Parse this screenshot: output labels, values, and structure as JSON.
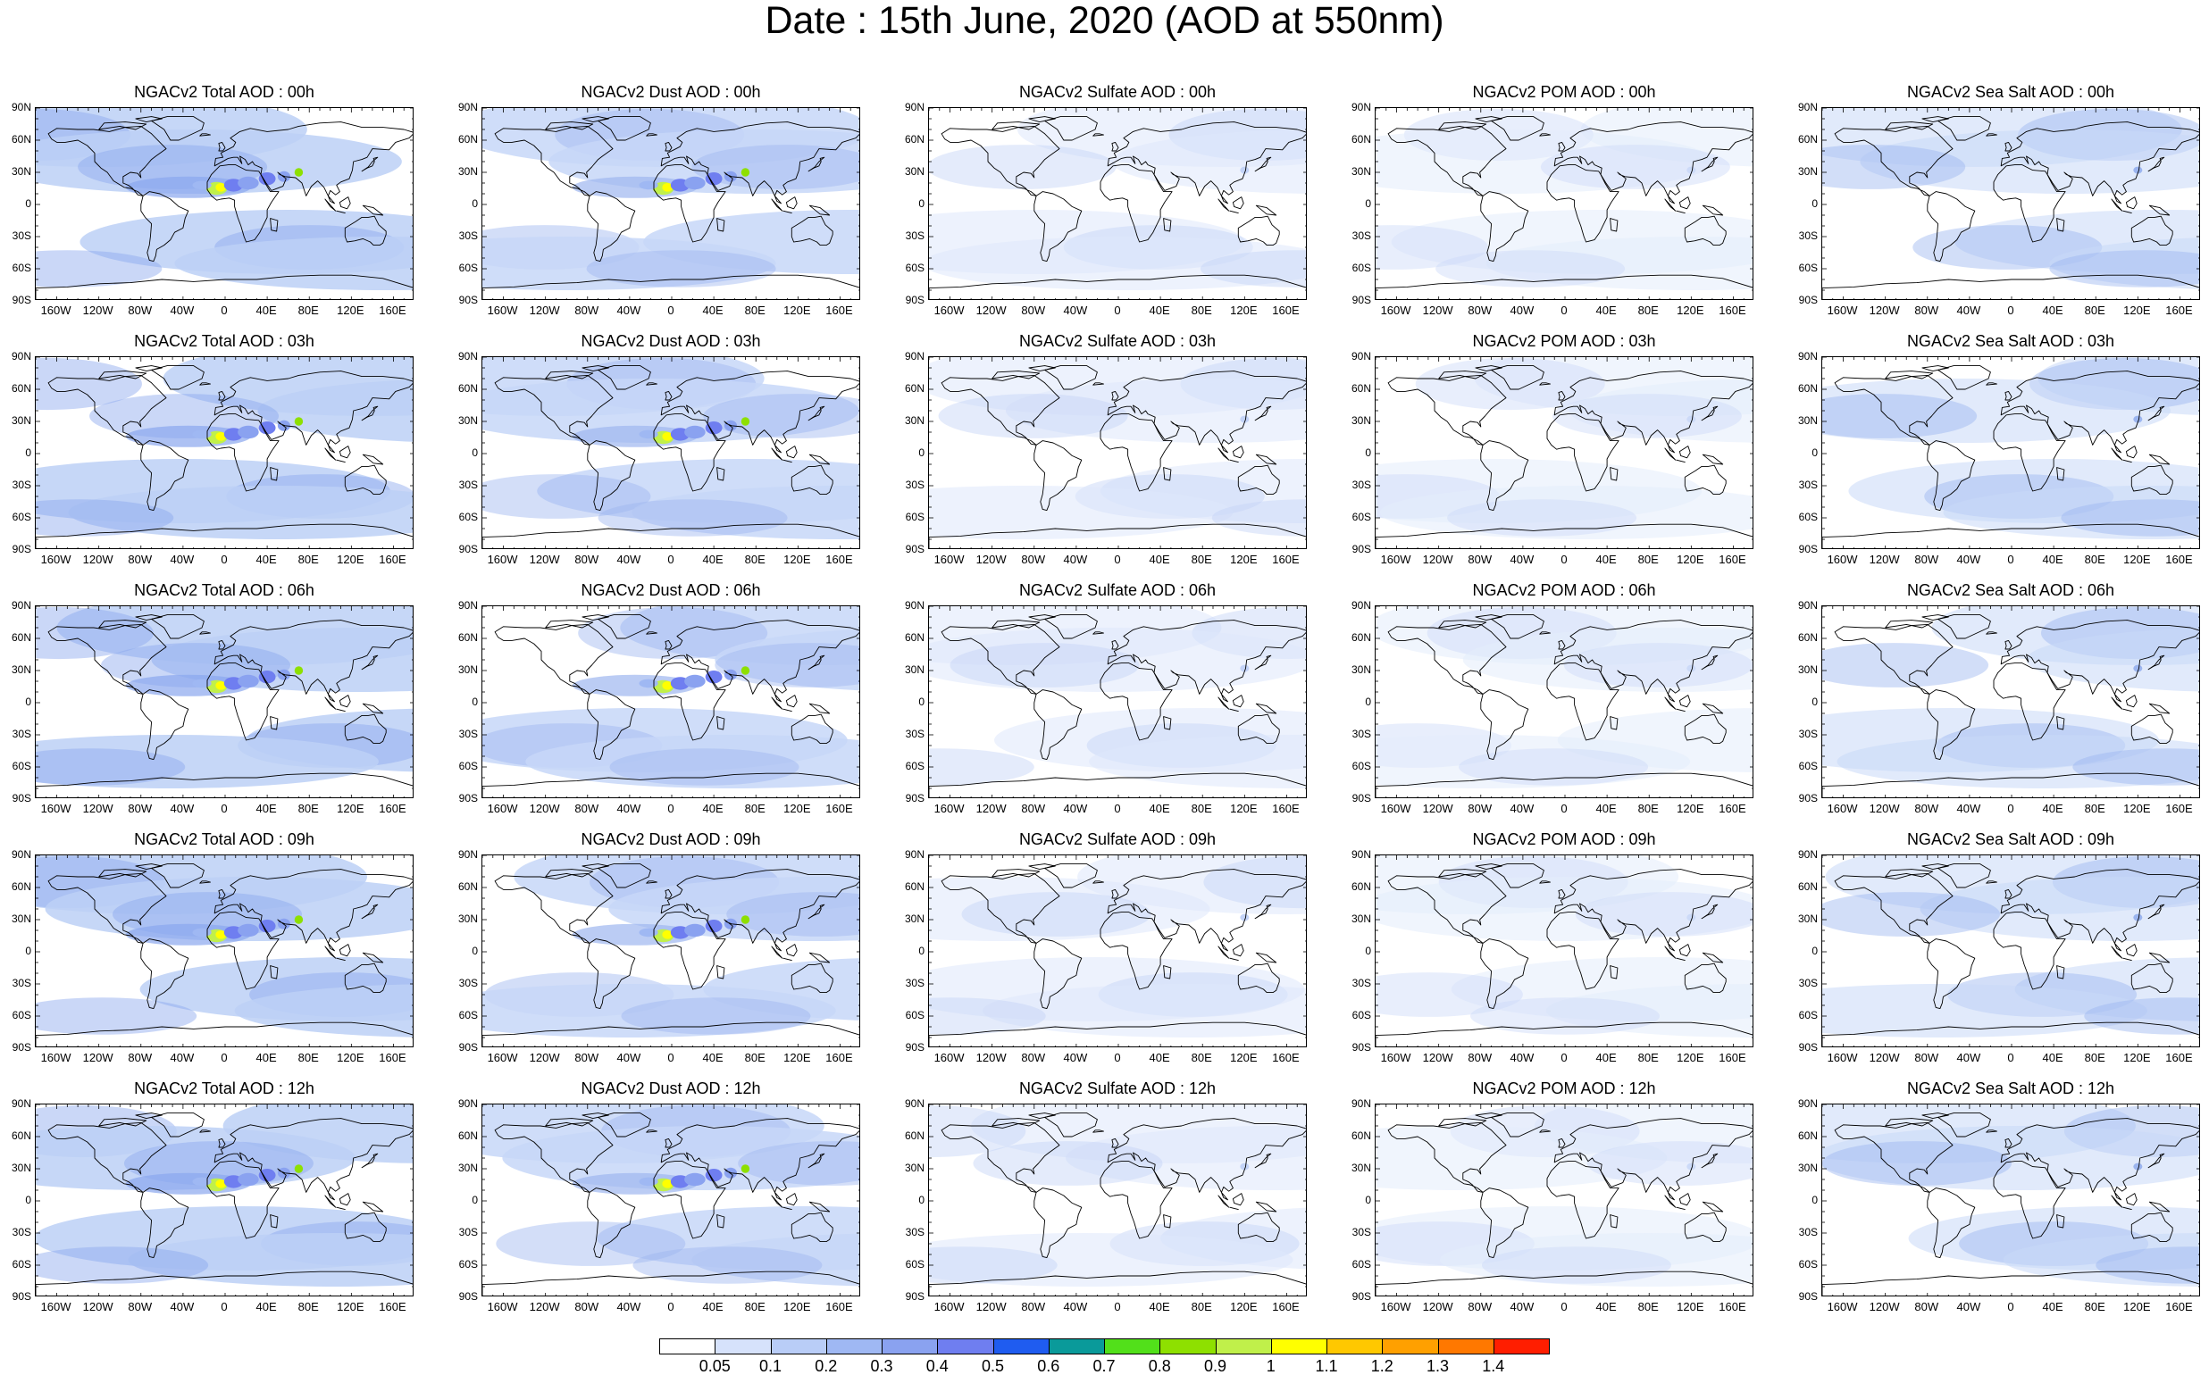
{
  "title": "Date : 15th June, 2020 (AOD at 550nm)",
  "columns": [
    {
      "species": "Total",
      "fill": "#bcd0f6",
      "dark": "#8aa6ee",
      "land": true
    },
    {
      "species": "Dust",
      "fill": "#c7d7f8",
      "dark": "#9eb6f0",
      "land": true
    },
    {
      "species": "Sulfate",
      "fill": "#dfe8fc",
      "dark": "#c3d3f7",
      "land": false
    },
    {
      "species": "POM",
      "fill": "#e4ecfc",
      "dark": "#ccdaf8",
      "land": false
    },
    {
      "species": "Sea Salt",
      "fill": "#c9d8f8",
      "dark": "#9cb5ef",
      "land": false
    }
  ],
  "panel_titles": [
    [
      "NGACv2 Total AOD : 00h",
      "NGACv2 Dust AOD : 00h",
      "NGACv2 Sulfate AOD : 00h",
      "NGACv2 POM AOD : 00h",
      "NGACv2 Sea Salt AOD : 00h"
    ],
    [
      "NGACv2 Total AOD : 03h",
      "NGACv2 Dust AOD : 03h",
      "NGACv2 Sulfate AOD : 03h",
      "NGACv2 POM AOD : 03h",
      "NGACv2 Sea Salt AOD : 03h"
    ],
    [
      "NGACv2 Total AOD : 06h",
      "NGACv2 Dust AOD : 06h",
      "NGACv2 Sulfate AOD : 06h",
      "NGACv2 POM AOD : 06h",
      "NGACv2 Sea Salt AOD : 06h"
    ],
    [
      "NGACv2 Total AOD : 09h",
      "NGACv2 Dust AOD : 09h",
      "NGACv2 Sulfate AOD : 09h",
      "NGACv2 POM AOD : 09h",
      "NGACv2 Sea Salt  AOD : 09h"
    ],
    [
      "NGACv2 Total AOD  : 12h",
      "NGACv2 Dust AOD : 12h",
      "NGACv2 Sulfate AOD : 12h",
      "NGACv2 POM  AOD : 12h",
      "NGACv2 Sea Salt  AOD : 12h"
    ]
  ],
  "lat_labels": [
    "90N",
    "60N",
    "30N",
    "0",
    "30S",
    "60S",
    "90S"
  ],
  "lon_labels": [
    "160W",
    "120W",
    "80W",
    "40W",
    "0",
    "40E",
    "80E",
    "120E",
    "160E"
  ],
  "colorbar": {
    "levels": [
      "0.05",
      "0.1",
      "0.2",
      "0.3",
      "0.4",
      "0.5",
      "0.6",
      "0.7",
      "0.8",
      "0.9",
      "1",
      "1.1",
      "1.2",
      "1.3",
      "1.4"
    ],
    "colors": [
      "#ffffff",
      "#d6e2fb",
      "#b9cdf7",
      "#9fb8f3",
      "#8aa2f0",
      "#6f7ef0",
      "#1f5cf0",
      "#0a9a9a",
      "#52e01a",
      "#8ee000",
      "#c0f04a",
      "#ffff00",
      "#ffc800",
      "#ffa000",
      "#ff7800",
      "#ff1e00"
    ]
  }
}
